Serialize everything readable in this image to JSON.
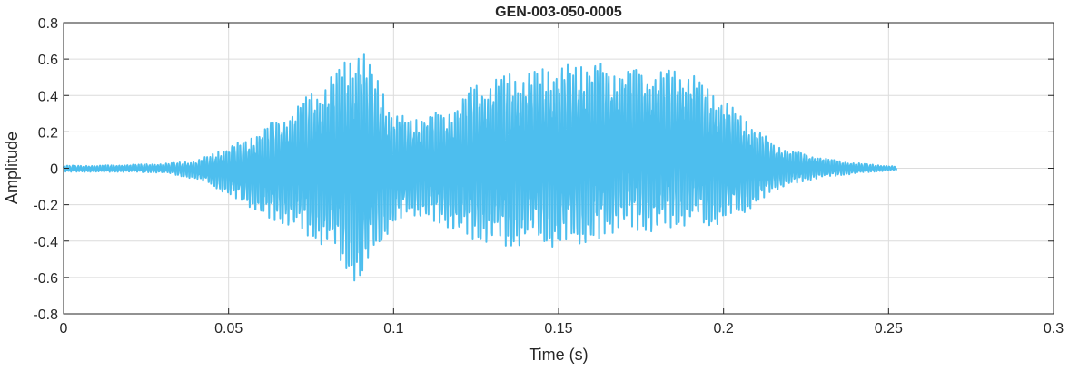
{
  "chart_data": {
    "type": "line",
    "title": "GEN-003-050-0005",
    "xlabel": "Time (s)",
    "ylabel": "Amplitude",
    "xlim": [
      0,
      0.3
    ],
    "ylim": [
      -0.8,
      0.8
    ],
    "xticks": [
      0,
      0.05,
      0.1,
      0.15,
      0.2,
      0.25,
      0.3
    ],
    "xtick_labels": [
      "0",
      "0.05",
      "0.1",
      "0.15",
      "0.2",
      "0.25",
      "0.3"
    ],
    "yticks": [
      -0.8,
      -0.6,
      -0.4,
      -0.2,
      0,
      0.2,
      0.4,
      0.6,
      0.8
    ],
    "ytick_labels": [
      "-0.8",
      "-0.6",
      "-0.4",
      "-0.2",
      "0",
      "0.2",
      "0.4",
      "0.6",
      "0.8"
    ],
    "grid": true,
    "series": [
      {
        "color": "#4DBEEE",
        "x": [
          0.0,
          0.01,
          0.02,
          0.03,
          0.04,
          0.045,
          0.05,
          0.055,
          0.06,
          0.065,
          0.07,
          0.075,
          0.08,
          0.085,
          0.088,
          0.09,
          0.092,
          0.095,
          0.1,
          0.105,
          0.11,
          0.115,
          0.12,
          0.125,
          0.13,
          0.135,
          0.14,
          0.145,
          0.15,
          0.155,
          0.16,
          0.165,
          0.17,
          0.175,
          0.18,
          0.185,
          0.19,
          0.195,
          0.2,
          0.205,
          0.21,
          0.215,
          0.22,
          0.225,
          0.23,
          0.235,
          0.24,
          0.245,
          0.2525
        ],
        "y": [
          0.015,
          0.015,
          0.02,
          0.025,
          0.04,
          0.08,
          0.12,
          0.16,
          0.22,
          0.28,
          0.34,
          0.42,
          0.5,
          0.58,
          0.65,
          0.7,
          0.6,
          0.5,
          0.3,
          0.28,
          0.3,
          0.32,
          0.38,
          0.48,
          0.5,
          0.52,
          0.53,
          0.55,
          0.56,
          0.58,
          0.6,
          0.56,
          0.56,
          0.55,
          0.55,
          0.54,
          0.54,
          0.44,
          0.38,
          0.3,
          0.22,
          0.14,
          0.1,
          0.08,
          0.06,
          0.04,
          0.03,
          0.02,
          0.01
        ],
        "y_min": [
          -0.02,
          -0.02,
          -0.02,
          -0.025,
          -0.06,
          -0.1,
          -0.15,
          -0.2,
          -0.26,
          -0.3,
          -0.33,
          -0.38,
          -0.45,
          -0.55,
          -0.62,
          -0.68,
          -0.6,
          -0.45,
          -0.32,
          -0.26,
          -0.28,
          -0.32,
          -0.36,
          -0.4,
          -0.42,
          -0.44,
          -0.42,
          -0.42,
          -0.45,
          -0.43,
          -0.42,
          -0.38,
          -0.32,
          -0.35,
          -0.36,
          -0.32,
          -0.32,
          -0.33,
          -0.3,
          -0.27,
          -0.2,
          -0.13,
          -0.09,
          -0.07,
          -0.05,
          -0.04,
          -0.03,
          -0.02,
          -0.01
        ]
      }
    ]
  }
}
